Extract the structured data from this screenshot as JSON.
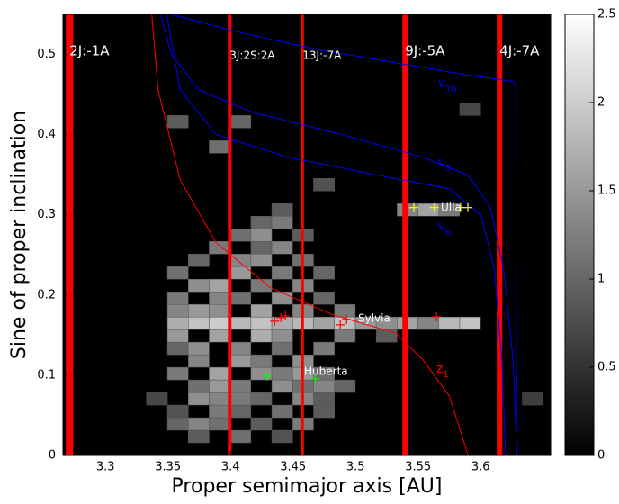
{
  "chart_data": {
    "type": "heatmap",
    "xlabel": "Proper semimajor axis [AU]",
    "ylabel": "Sine of proper inclination",
    "xlim": [
      3.266,
      3.656
    ],
    "ylim": [
      0,
      0.55
    ],
    "xticks": [
      3.3,
      3.35,
      3.4,
      3.45,
      3.5,
      3.55,
      3.6
    ],
    "yticks": [
      0,
      0.1,
      0.2,
      0.3,
      0.4,
      0.5
    ],
    "colorbar": {
      "lim": [
        0,
        2.5
      ],
      "ticks": [
        0,
        0.5,
        1,
        1.5,
        2,
        2.5
      ]
    },
    "cell_width": 0.0167,
    "cell_height": 0.0157,
    "cells": [
      [
        3.3662,
        0.0157,
        0.9
      ],
      [
        3.3996,
        0.0157,
        1.1
      ],
      [
        3.433,
        0.0157,
        0.8
      ],
      [
        3.3495,
        0.0314,
        1.0
      ],
      [
        3.3662,
        0.0314,
        1.3
      ],
      [
        3.3829,
        0.0314,
        1.1
      ],
      [
        3.4163,
        0.0314,
        0.9
      ],
      [
        3.4497,
        0.0314,
        1.2
      ],
      [
        3.3495,
        0.0471,
        0.8
      ],
      [
        3.3829,
        0.0471,
        1.2
      ],
      [
        3.3996,
        0.0471,
        1.0
      ],
      [
        3.433,
        0.0471,
        1.1
      ],
      [
        3.4664,
        0.0471,
        0.9
      ],
      [
        3.3328,
        0.0628,
        0.7
      ],
      [
        3.3662,
        0.0628,
        1.4
      ],
      [
        3.3829,
        0.0628,
        1.3
      ],
      [
        3.3996,
        0.0628,
        1.2
      ],
      [
        3.4163,
        0.0628,
        1.0
      ],
      [
        3.4497,
        0.0628,
        1.3
      ],
      [
        3.4664,
        0.0628,
        0.9
      ],
      [
        3.6334,
        0.0628,
        0.6
      ],
      [
        3.3662,
        0.0785,
        1.1
      ],
      [
        3.3829,
        0.0785,
        1.5
      ],
      [
        3.3996,
        0.0785,
        1.2
      ],
      [
        3.433,
        0.0785,
        1.4
      ],
      [
        3.4497,
        0.0785,
        1.1
      ],
      [
        3.4664,
        0.0785,
        1.3
      ],
      [
        3.4831,
        0.0785,
        1.0
      ],
      [
        3.3495,
        0.0942,
        1.2
      ],
      [
        3.3829,
        0.0942,
        1.6
      ],
      [
        3.4163,
        0.0942,
        1.4
      ],
      [
        3.433,
        0.0942,
        1.2
      ],
      [
        3.4497,
        0.0942,
        1.5
      ],
      [
        3.4664,
        0.0942,
        1.1
      ],
      [
        3.3662,
        0.1099,
        1.3
      ],
      [
        3.3996,
        0.1099,
        1.5
      ],
      [
        3.4163,
        0.1099,
        1.2
      ],
      [
        3.4497,
        0.1099,
        1.4
      ],
      [
        3.3495,
        0.1256,
        1.0
      ],
      [
        3.3662,
        0.1256,
        1.4
      ],
      [
        3.3996,
        0.1256,
        1.3
      ],
      [
        3.433,
        0.1256,
        1.1
      ],
      [
        3.4664,
        0.1256,
        1.2
      ],
      [
        3.3495,
        0.1413,
        1.5
      ],
      [
        3.3829,
        0.1413,
        1.6
      ],
      [
        3.4163,
        0.1413,
        1.7
      ],
      [
        3.433,
        0.1413,
        1.4
      ],
      [
        3.4831,
        0.1413,
        1.2
      ],
      [
        3.5165,
        0.1413,
        0.9
      ],
      [
        3.3495,
        0.157,
        1.7
      ],
      [
        3.3662,
        0.157,
        1.9
      ],
      [
        3.3829,
        0.157,
        2.0
      ],
      [
        3.3996,
        0.157,
        1.8
      ],
      [
        3.4163,
        0.157,
        1.9
      ],
      [
        3.433,
        0.157,
        1.7
      ],
      [
        3.4497,
        0.157,
        1.8
      ],
      [
        3.4664,
        0.157,
        1.6
      ],
      [
        3.4831,
        0.157,
        1.9
      ],
      [
        3.4998,
        0.157,
        1.5
      ],
      [
        3.5165,
        0.157,
        1.4
      ],
      [
        3.5332,
        0.157,
        1.6
      ],
      [
        3.5499,
        0.157,
        1.3
      ],
      [
        3.5666,
        0.157,
        1.8
      ],
      [
        3.5833,
        0.157,
        1.9
      ],
      [
        3.3495,
        0.1727,
        1.3
      ],
      [
        3.3662,
        0.1727,
        1.5
      ],
      [
        3.3829,
        0.1727,
        1.4
      ],
      [
        3.4163,
        0.1727,
        1.6
      ],
      [
        3.4497,
        0.1727,
        1.3
      ],
      [
        3.4831,
        0.1727,
        1.2
      ],
      [
        3.3495,
        0.1884,
        1.2
      ],
      [
        3.3829,
        0.1884,
        1.3
      ],
      [
        3.3996,
        0.1884,
        1.1
      ],
      [
        3.433,
        0.1884,
        1.4
      ],
      [
        3.4664,
        0.1884,
        1.0
      ],
      [
        3.3662,
        0.2041,
        1.4
      ],
      [
        3.3829,
        0.2041,
        1.6
      ],
      [
        3.4163,
        0.2041,
        1.2
      ],
      [
        3.4497,
        0.2041,
        1.3
      ],
      [
        3.3495,
        0.2198,
        1.1
      ],
      [
        3.3996,
        0.2198,
        1.5
      ],
      [
        3.433,
        0.2198,
        1.2
      ],
      [
        3.4664,
        0.2198,
        1.0
      ],
      [
        3.3662,
        0.2355,
        1.0
      ],
      [
        3.3996,
        0.2355,
        1.3
      ],
      [
        3.4163,
        0.2355,
        1.4
      ],
      [
        3.4497,
        0.2355,
        1.1
      ],
      [
        3.3829,
        0.2512,
        1.2
      ],
      [
        3.4163,
        0.2512,
        1.0
      ],
      [
        3.433,
        0.2512,
        1.3
      ],
      [
        3.3996,
        0.2669,
        1.1
      ],
      [
        3.4163,
        0.2669,
        1.4
      ],
      [
        3.4497,
        0.2669,
        0.9
      ],
      [
        3.4163,
        0.2826,
        1.0
      ],
      [
        3.433,
        0.2826,
        1.2
      ],
      [
        3.433,
        0.2983,
        0.9
      ],
      [
        3.5332,
        0.2983,
        1.3
      ],
      [
        3.5499,
        0.2983,
        1.6
      ],
      [
        3.5666,
        0.2983,
        1.2
      ],
      [
        3.4664,
        0.3297,
        0.8
      ],
      [
        3.3829,
        0.3768,
        1.1
      ],
      [
        3.3495,
        0.4082,
        0.9
      ],
      [
        3.3996,
        0.4082,
        1.0
      ],
      [
        3.5833,
        0.4239,
        0.7
      ]
    ],
    "resonances": [
      {
        "name": "2J:-1A",
        "a": 3.2712
      },
      {
        "name": "3J:2S:2A",
        "a": 3.3993
      },
      {
        "name": "13J:-7A",
        "a": 3.4576
      },
      {
        "name": "9J:-5A",
        "a": 3.5396
      },
      {
        "name": "4J:-7A",
        "a": 3.6151
      }
    ],
    "curves": [
      {
        "label": "ν",
        "label_sub": "16",
        "color": "#0000ff",
        "x": [
          3.3525,
          3.403,
          3.468,
          3.5396,
          3.59,
          3.626,
          3.628,
          3.6288
        ],
        "y": [
          0.55,
          0.529,
          0.5067,
          0.4876,
          0.4742,
          0.4663,
          0.4618,
          0.0292
        ]
      },
      {
        "label": "ν",
        "label_sub": "5",
        "color": "#0000ff",
        "x": [
          3.344,
          3.3525,
          3.374,
          3.417,
          3.489,
          3.554,
          3.59,
          3.6077,
          3.6185,
          3.626,
          3.629
        ],
        "y": [
          0.55,
          0.5011,
          0.4562,
          0.4281,
          0.4,
          0.3719,
          0.3494,
          0.3101,
          0.2315,
          0.1191,
          0
        ]
      },
      {
        "label": "ν",
        "label_sub": "6",
        "color": "#0000ff",
        "x": [
          3.349,
          3.3597,
          3.3885,
          3.446,
          3.518,
          3.575,
          3.6006,
          3.611,
          3.617,
          3.62
        ],
        "y": [
          0.55,
          0.4562,
          0.4,
          0.3719,
          0.3494,
          0.3326,
          0.2989,
          0.2315,
          0.1191,
          0
        ]
      },
      {
        "label": "z",
        "label_sub": "1",
        "color": "#ff0000",
        "x": [
          3.337,
          3.342,
          3.3597,
          3.3885,
          3.432,
          3.482,
          3.532,
          3.554,
          3.575,
          3.59
        ],
        "y": [
          0.55,
          0.4562,
          0.3438,
          0.2652,
          0.209,
          0.1753,
          0.1528,
          0.1191,
          0.0742,
          0
        ]
      }
    ],
    "objects": [
      {
        "name": "Ulla",
        "color": "#ffff00",
        "x": [
          3.5466,
          3.563,
          3.584,
          3.5898
        ],
        "y": [
          0.309,
          0.309,
          0.309,
          0.309
        ]
      },
      {
        "name": "Sylvia",
        "color": "#ff0000",
        "x": [
          3.4353,
          3.4403,
          3.4439,
          3.4878,
          3.4928,
          3.5647
        ],
        "y": [
          0.1674,
          0.1719,
          0.1742,
          0.1629,
          0.1697,
          0.173
        ]
      },
      {
        "name": "Huberta",
        "color": "#00ff00",
        "x": [
          3.4295,
          3.4676
        ],
        "y": [
          0.0989,
          0.0955
        ]
      }
    ]
  }
}
